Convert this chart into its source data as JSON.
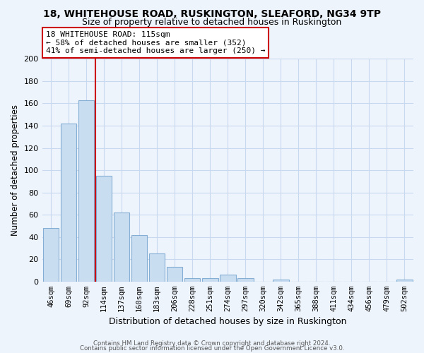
{
  "title": "18, WHITEHOUSE ROAD, RUSKINGTON, SLEAFORD, NG34 9TP",
  "subtitle": "Size of property relative to detached houses in Ruskington",
  "xlabel": "Distribution of detached houses by size in Ruskington",
  "ylabel": "Number of detached properties",
  "bar_labels": [
    "46sqm",
    "69sqm",
    "92sqm",
    "114sqm",
    "137sqm",
    "160sqm",
    "183sqm",
    "206sqm",
    "228sqm",
    "251sqm",
    "274sqm",
    "297sqm",
    "320sqm",
    "342sqm",
    "365sqm",
    "388sqm",
    "411sqm",
    "434sqm",
    "456sqm",
    "479sqm",
    "502sqm"
  ],
  "bar_values": [
    48,
    142,
    163,
    95,
    62,
    42,
    25,
    13,
    3,
    3,
    6,
    3,
    0,
    2,
    0,
    0,
    0,
    0,
    0,
    0,
    2
  ],
  "bar_color": "#c9ddf0",
  "bar_edge_color": "#85aed4",
  "annotation_box_text_line1": "18 WHITEHOUSE ROAD: 115sqm",
  "annotation_box_text_line2": "← 58% of detached houses are smaller (352)",
  "annotation_box_text_line3": "41% of semi-detached houses are larger (250) →",
  "annotation_box_color": "#ffffff",
  "annotation_box_edge_color": "#cc0000",
  "vline_color": "#cc0000",
  "vline_x_index": 2.5,
  "ylim": [
    0,
    200
  ],
  "yticks": [
    0,
    20,
    40,
    60,
    80,
    100,
    120,
    140,
    160,
    180,
    200
  ],
  "footer1": "Contains HM Land Registry data © Crown copyright and database right 2024.",
  "footer2": "Contains public sector information licensed under the Open Government Licence v3.0.",
  "grid_color": "#c8d8ee",
  "bg_color": "#eef4fc",
  "title_fontsize": 10,
  "subtitle_fontsize": 9
}
